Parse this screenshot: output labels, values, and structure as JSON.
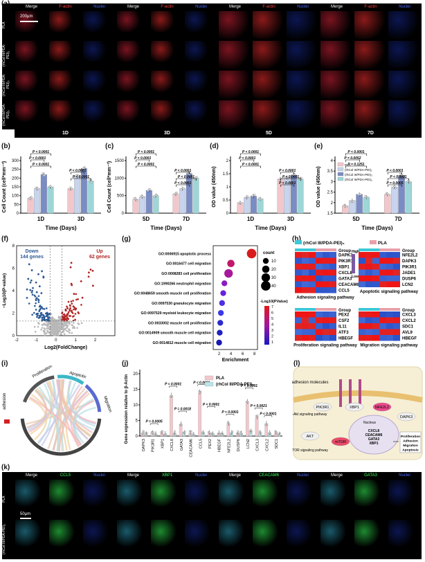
{
  "panel_labels": {
    "a": "(a)",
    "b": "(b)",
    "c": "(c)",
    "d": "(d)",
    "e": "(e)",
    "f": "(f)",
    "g": "(g)",
    "h": "(h)",
    "i": "(i)",
    "j": "(j)",
    "l": "(l)",
    "k": "(k)"
  },
  "panel_a": {
    "headers": [
      "Merge",
      "F-actin",
      "Nuclei",
      "Merge",
      "F-actin",
      "Nuclei",
      "Merge",
      "F-actin",
      "Nuclei",
      "Merge",
      "F-actin",
      "Nuclei"
    ],
    "row_labels": [
      "PLA",
      "(rhCol III/PDA-PEI)₁",
      "(rhCol III/PDA-PEI)₃",
      "(rhCol III/PDA-PEI)₅"
    ],
    "scale_bar": "200μm",
    "days": [
      "1D",
      "3D",
      "5D",
      "7D"
    ]
  },
  "colors": {
    "red_tile": "#8a1a1a",
    "blue_tile": "#0c1650",
    "green_tile": "#1e8a30",
    "merge_tile": "#7a1420",
    "pla": "#f2c7cc",
    "g1": "#c8d4ec",
    "g3": "#7a8cc4",
    "g5": "#9ed6d8",
    "up": "#b22222",
    "down": "#2c5a96",
    "ns": "#b8b8b8"
  },
  "chart_data": [
    {
      "panel": "b",
      "type": "bar",
      "categories": [
        "1D",
        "3D"
      ],
      "series": [
        {
          "values": [
            85,
            140
          ]
        },
        {
          "values": [
            140,
            210
          ]
        },
        {
          "values": [
            220,
            255
          ]
        },
        {
          "values": [
            150,
            185
          ]
        }
      ],
      "ylabel": "Cell Count (cell*mm⁻²)",
      "xlabel": "Time (Days)",
      "ylim": [
        0,
        300
      ],
      "yticks": [
        0,
        50,
        100,
        150,
        200,
        250,
        300
      ],
      "annotations": [
        "P < 0.0001",
        "P < 0.0001",
        "P < 0.0001",
        "P < 0.0001",
        "P < 0.0001"
      ]
    },
    {
      "panel": "c",
      "type": "bar",
      "categories": [
        "5D",
        "7D"
      ],
      "series": [
        {
          "values": [
            400,
            550
          ]
        },
        {
          "values": [
            470,
            700
          ]
        },
        {
          "values": [
            650,
            1130
          ]
        },
        {
          "values": [
            500,
            1000
          ]
        }
      ],
      "ylabel": "Cell Count (cell*mm⁻²)",
      "xlabel": "Time (Days)",
      "ylim": [
        0,
        1500
      ],
      "yticks": [
        0,
        500,
        1000,
        1500
      ],
      "annotations": [
        "P < 0.0001",
        "P < 0.0001",
        "P < 0.0001",
        "P < 0.0001",
        "P < 0.0001",
        "P < 0.0001"
      ]
    },
    {
      "panel": "d",
      "type": "bar",
      "categories": [
        "1D",
        "3D"
      ],
      "series": [
        {
          "values": [
            0.4,
            1.3
          ]
        },
        {
          "values": [
            0.6,
            1.35
          ]
        },
        {
          "values": [
            0.65,
            1.45
          ]
        },
        {
          "values": [
            0.55,
            1.3
          ]
        }
      ],
      "ylabel": "OD value (450nm)",
      "xlabel": "Time (Days)",
      "ylim": [
        0,
        2.0
      ],
      "yticks": [
        0,
        0.5,
        1.0,
        1.5,
        2.0
      ],
      "annotations": [
        "P < 0.0001",
        "P < 0.0001",
        "P < 0.0001",
        "P < 0.0001",
        "P < 0.0001",
        "P < 0.0001"
      ]
    },
    {
      "panel": "e",
      "type": "bar",
      "categories": [
        "5D",
        "7D"
      ],
      "series": [
        {
          "name": "PLA",
          "values": [
            1.85,
            2.4
          ]
        },
        {
          "name": "(rhCol III/PDA-PEI)₁",
          "values": [
            2.1,
            2.75
          ]
        },
        {
          "name": "(rhCol III/PDA-PEI)₃",
          "values": [
            2.4,
            3.3
          ]
        },
        {
          "name": "(rhCol III/PDA-PEI)₅",
          "values": [
            2.25,
            3.0
          ]
        }
      ],
      "ylabel": "OD value (450nm)",
      "xlabel": "Time (Days)",
      "ylim": [
        1.5,
        4.0
      ],
      "yticks": [
        1.5,
        2.0,
        2.5,
        3.0,
        3.5,
        4.0
      ],
      "annotations": [
        "P < 0.0001",
        "P = 0.0052",
        "P = 0.1251",
        "P < 0.0001",
        "P < 0.0001",
        "P = 0.0005"
      ]
    },
    {
      "panel": "f",
      "type": "scatter",
      "xlabel": "Log2(FoldChange)",
      "ylabel": "−Log10(P-value)",
      "xlim": [
        -2,
        3
      ],
      "ylim": [
        0,
        8
      ],
      "xticks": [
        "-2",
        "-1",
        "0",
        "1",
        "2"
      ],
      "yticks": [
        "0",
        "2",
        "4",
        "6",
        "8"
      ],
      "labels": {
        "down": "Down",
        "down_count": "144 genes",
        "up": "Up",
        "up_count": "62 genes"
      }
    },
    {
      "panel": "g",
      "type": "scatter",
      "title": "",
      "terms": [
        "GO:0006915 apoptotic process",
        "GO:0016477 cell migration",
        "GO:0008283 cell proliferation",
        "GO:1990266 neutrophil migration",
        "GO:0048659 smooth muscle cell proliferation",
        "GO:0097530 granulocyte migration",
        "GO:0097529 myeloid leukocyte migration",
        "GO:0033002 muscle cell proliferation",
        "GO:0014909 smooth muscle cell migration",
        "GO:0014812 muscle cell migration"
      ],
      "enrichment": [
        7.5,
        4.0,
        3.6,
        2.9,
        2.7,
        2.5,
        2.3,
        2.2,
        2.1,
        2.0
      ],
      "count": [
        40,
        20,
        30,
        10,
        10,
        10,
        10,
        10,
        10,
        10
      ],
      "xlabel": "Enrichment",
      "xticks": [
        "2",
        "4",
        "6",
        "8"
      ],
      "legend_count_title": "count",
      "legend_count": [
        "10",
        "20",
        "30",
        "40"
      ],
      "legend_color_title": "-Log10(PValue)",
      "legend_color": [
        "7",
        "6",
        "5",
        "4",
        "3",
        "2",
        "1"
      ]
    },
    {
      "panel": "j",
      "type": "bar",
      "categories": [
        "DAPK3",
        "PIK3R1",
        "XBP1",
        "CXCL8",
        "GATA3",
        "CEACAM6",
        "CCL5",
        "PEX2",
        "HBEGF",
        "NFE2L2",
        "DUSP6",
        "LCN2",
        "CXCL3",
        "CXCL2",
        "SDC1"
      ],
      "series": [
        {
          "name": "PLA",
          "values": [
            1,
            1,
            1,
            13,
            3.8,
            1,
            14,
            1,
            1,
            4,
            1,
            11,
            6,
            4,
            1
          ]
        },
        {
          "name": "(rhCol III/PDA-PEI)₅",
          "values": [
            0.6,
            0.6,
            0.7,
            1,
            1,
            0.4,
            1,
            0.6,
            0.7,
            1,
            0.8,
            1.5,
            1,
            1,
            0.5
          ]
        }
      ],
      "ylabel": "Gene expression relative to β-Actin",
      "ylim": [
        0,
        20
      ],
      "yticks": [
        0,
        5,
        10,
        15,
        20
      ],
      "annotations": [
        "P = 0.0005",
        "P < 0.0001",
        "P = 0.0018",
        "P < 0.0001",
        "P < 0.0001",
        "P < 0.0001",
        "P < 0.0001",
        "P = 0.0021",
        "P < 0.0001"
      ]
    }
  ],
  "panel_h": {
    "legend": [
      "(rhCol III/PDA-PEI)₅",
      "PLA"
    ],
    "scale": [
      "High",
      "Low"
    ],
    "group": "Group",
    "blocks": [
      {
        "genes": [
          "DAPK3",
          "PIK3R1",
          "XBP1",
          "CXCL8",
          "GATA3",
          "CEACAM6",
          "CCL5"
        ],
        "caption": "Adhesion signaling pathway"
      },
      {
        "genes": [
          "NFE2L2",
          "DAPK3",
          "PIK3R1",
          "JADE1",
          "DUSP6",
          "LCN2"
        ],
        "caption": "Apoptotic signaling pathway"
      },
      {
        "genes": [
          "PEX2",
          "CSF2",
          "IL11",
          "ATF3",
          "HBEGF"
        ],
        "caption": "Proliferation signaling pathway"
      },
      {
        "genes": [
          "CXCL3",
          "CXCL2",
          "SDC1",
          "AVL9",
          "HBEGF"
        ],
        "caption": "Migration signaling pathway"
      }
    ]
  },
  "panel_i": {
    "arcs": [
      "Proliferation",
      "Apoptotic",
      "Migration",
      "adhesion"
    ]
  },
  "panel_l": {
    "labels": [
      "Cell adhesion molecules",
      "PI3K-Akt signaling pathway",
      "PIK3R1",
      "XBP1",
      "NFE2L2",
      "DAPK3",
      "AKT",
      "mTOR",
      "mTOR signaling pathway",
      "Nucleus",
      "CXCL8",
      "CEACAM6",
      "GATA3",
      "XBP1",
      "Proliferation",
      "Adhesion",
      "Migration",
      "Apoptosis"
    ]
  },
  "panel_k": {
    "headers": [
      "Merge",
      "CCL5",
      "Nuclei",
      "Merge",
      "XBP1",
      "Nuclei",
      "Merge",
      "CEACAM6",
      "Nuclei",
      "Merge",
      "GATA3",
      "Nuclei"
    ],
    "row_labels": [
      "PLA",
      "(rhCol III/PDA-PEI)₅"
    ],
    "scale_bar": "50μm"
  }
}
